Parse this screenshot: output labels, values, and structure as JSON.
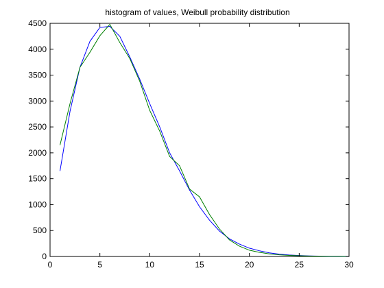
{
  "chart_data": {
    "type": "line",
    "title": "histogram of values, Weibull probability distribution",
    "xlabel": "",
    "ylabel": "",
    "xlim": [
      0,
      30
    ],
    "ylim": [
      0,
      4500
    ],
    "xticks": [
      0,
      5,
      10,
      15,
      20,
      25,
      30
    ],
    "yticks": [
      0,
      500,
      1000,
      1500,
      2000,
      2500,
      3000,
      3500,
      4000,
      4500
    ],
    "grid": false,
    "legend": "none",
    "series": [
      {
        "color": "#0000ff",
        "x": [
          1,
          2,
          3,
          4,
          5,
          6,
          7,
          8,
          9,
          10,
          11,
          12,
          13,
          14,
          15,
          16,
          17,
          18,
          19,
          20,
          21,
          22,
          23,
          24,
          25,
          26,
          27,
          28,
          29,
          30
        ],
        "y": [
          1650,
          2800,
          3650,
          4150,
          4420,
          4440,
          4250,
          3850,
          3420,
          2950,
          2500,
          2000,
          1650,
          1280,
          960,
          700,
          490,
          340,
          240,
          160,
          110,
          70,
          45,
          28,
          18,
          10,
          6,
          4,
          2,
          1
        ]
      },
      {
        "color": "#007f00",
        "x": [
          1,
          2,
          3,
          4,
          5,
          6,
          7,
          8,
          9,
          10,
          11,
          12,
          13,
          14,
          15,
          16,
          17,
          18,
          19,
          20,
          21,
          22,
          23,
          24,
          25,
          26,
          27,
          28,
          29,
          30
        ],
        "y": [
          2150,
          2950,
          3650,
          3940,
          4260,
          4480,
          4130,
          3820,
          3380,
          2820,
          2420,
          1930,
          1750,
          1300,
          1150,
          810,
          530,
          320,
          200,
          120,
          80,
          50,
          32,
          20,
          13,
          8,
          5,
          3,
          2,
          1
        ]
      }
    ]
  }
}
